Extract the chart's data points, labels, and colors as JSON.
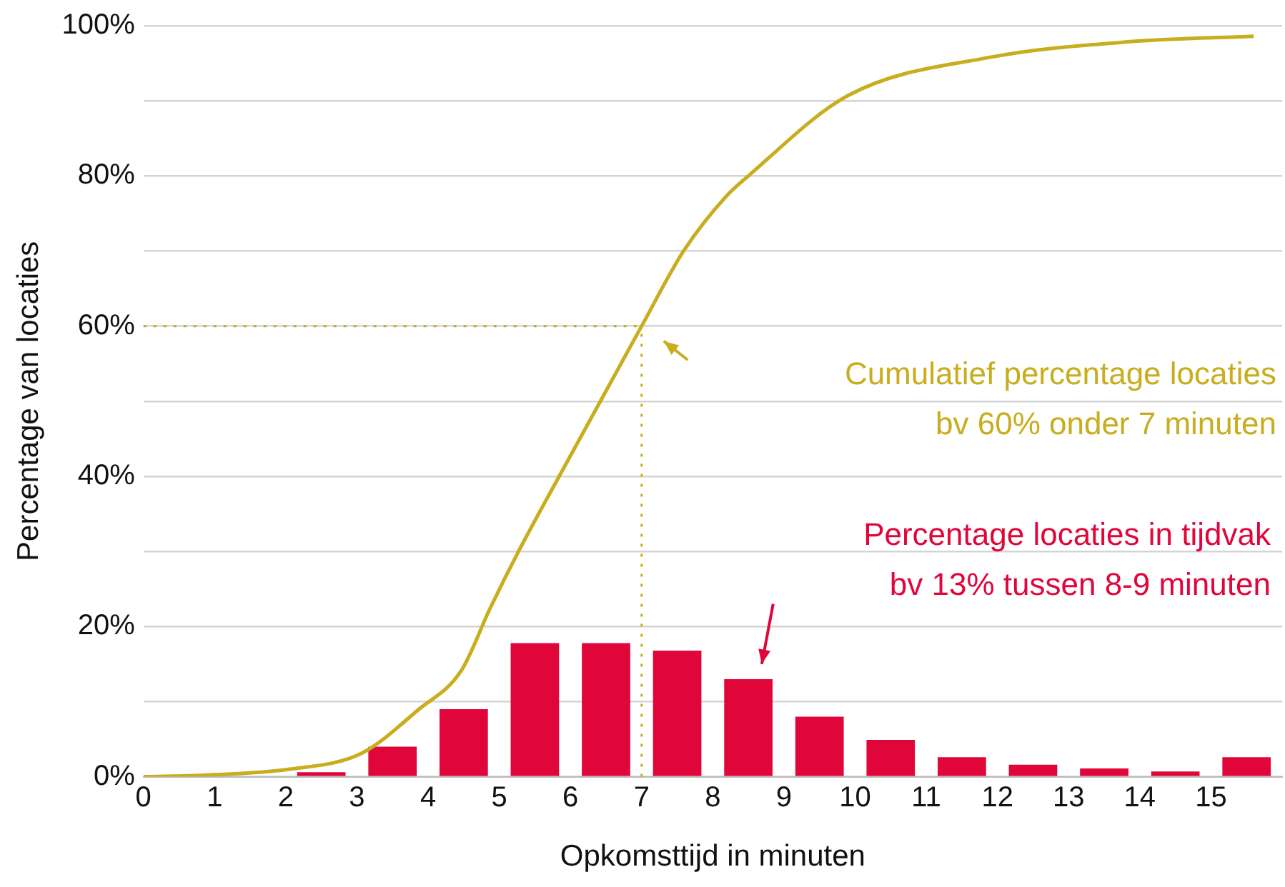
{
  "chart_data": {
    "type": "histogram",
    "xlabel": "Opkomsttijd in minuten",
    "ylabel": "Percentage van locaties",
    "xlim": [
      0,
      16
    ],
    "xticks": [
      0,
      1,
      2,
      3,
      4,
      5,
      6,
      7,
      8,
      9,
      10,
      11,
      12,
      13,
      14,
      15
    ],
    "ylim": [
      0,
      100
    ],
    "yticks": [
      {
        "value": 0,
        "label": "0%"
      },
      {
        "value": 10,
        "label": null
      },
      {
        "value": 20,
        "label": "20%"
      },
      {
        "value": 30,
        "label": null
      },
      {
        "value": 40,
        "label": "40%"
      },
      {
        "value": 50,
        "label": null
      },
      {
        "value": 60,
        "label": "60%"
      },
      {
        "value": 70,
        "label": null
      },
      {
        "value": 80,
        "label": "80%"
      },
      {
        "value": 90,
        "label": null
      },
      {
        "value": 100,
        "label": "100%"
      }
    ],
    "grid": "y",
    "legend": false,
    "series": [
      {
        "color": "#e0063a",
        "bins": [
          2,
          3,
          4,
          5,
          6,
          7,
          8,
          9,
          10,
          11,
          12,
          13,
          14,
          15,
          16
        ],
        "values": [
          0.6,
          4,
          9,
          17.8,
          17.8,
          16.8,
          13,
          8,
          4.9,
          2.6,
          1.6,
          1.1,
          0.7,
          2.6
        ]
      },
      {
        "type": "line",
        "color": "#c8ad1e",
        "x": [
          0,
          0.85,
          2.05,
          3.06,
          3.86,
          4.47,
          4.87,
          5.27,
          5.87,
          7,
          7.59,
          8.19,
          8.5,
          9.9,
          11.9,
          13.9,
          15.6
        ],
        "values": [
          0,
          0.2,
          1,
          3.1,
          8.9,
          14.2,
          22.4,
          30,
          40.5,
          60,
          70,
          77.3,
          80,
          90.7,
          95.8,
          97.9,
          98.6
        ]
      }
    ],
    "ref_lines": [
      {
        "axis": "x",
        "value": 7,
        "color": "#c8ad1e",
        "line_style": "dotted"
      },
      {
        "axis": "y",
        "value": 60,
        "color": "#c8ad1e",
        "line_style": "dotted"
      }
    ],
    "annotations": [
      "Cumulatief percentage locaties\nbv 60% onder 7 minuten",
      "Percentage locaties in tijdvak\nbv 13% tussen 8-9 minuten"
    ]
  }
}
